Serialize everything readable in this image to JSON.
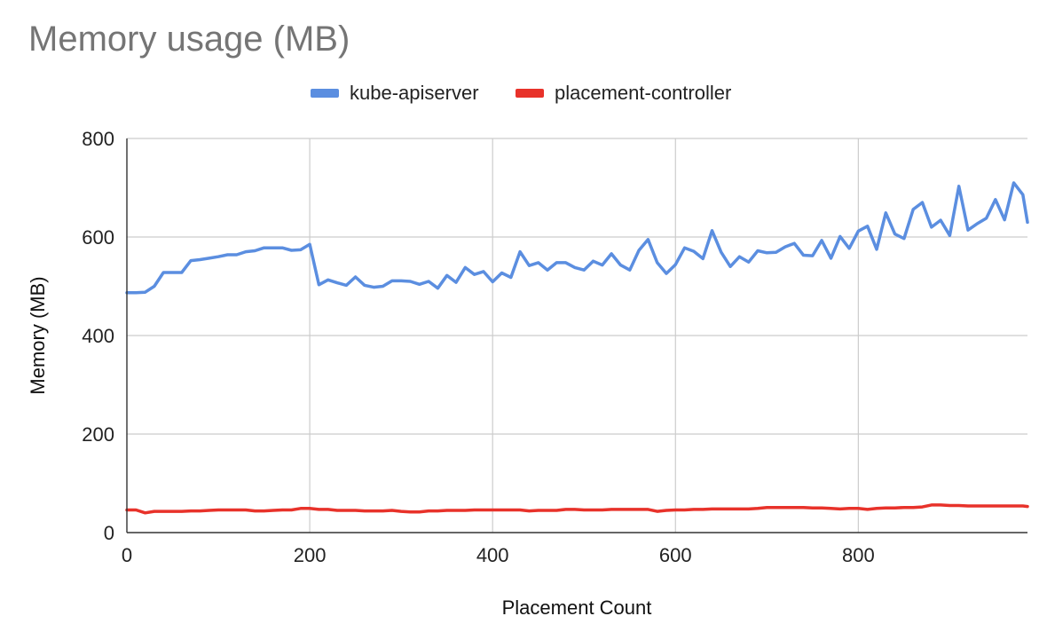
{
  "chart_data": {
    "type": "line",
    "title": "Memory usage (MB)",
    "xlabel": "Placement Count",
    "ylabel": "Memory (MB)",
    "xlim": [
      0,
      985
    ],
    "ylim": [
      0,
      800
    ],
    "xticks": [
      0,
      200,
      400,
      600,
      800
    ],
    "yticks": [
      0,
      200,
      400,
      600,
      800
    ],
    "grid": true,
    "legend_position": "top",
    "series": [
      {
        "name": "kube-apiserver",
        "color": "#5b8ee0",
        "x": [
          0,
          10,
          20,
          30,
          40,
          50,
          60,
          70,
          80,
          90,
          100,
          110,
          120,
          130,
          140,
          150,
          160,
          170,
          180,
          190,
          200,
          210,
          220,
          230,
          240,
          250,
          260,
          270,
          280,
          290,
          300,
          310,
          320,
          330,
          340,
          350,
          360,
          370,
          380,
          390,
          400,
          410,
          420,
          430,
          440,
          450,
          460,
          470,
          480,
          490,
          500,
          510,
          520,
          530,
          540,
          550,
          560,
          570,
          580,
          590,
          600,
          610,
          620,
          630,
          640,
          650,
          660,
          670,
          680,
          690,
          700,
          710,
          720,
          730,
          740,
          750,
          760,
          770,
          780,
          790,
          800,
          810,
          820,
          830,
          840,
          850,
          860,
          870,
          880,
          890,
          900,
          910,
          920,
          930,
          940,
          950,
          960,
          970,
          980,
          985
        ],
        "y": [
          487,
          487,
          488,
          500,
          528,
          528,
          528,
          552,
          554,
          557,
          560,
          564,
          564,
          570,
          572,
          578,
          578,
          578,
          573,
          574,
          585,
          503,
          513,
          507,
          502,
          519,
          502,
          498,
          500,
          511,
          511,
          510,
          504,
          510,
          496,
          522,
          508,
          538,
          524,
          530,
          509,
          527,
          518,
          570,
          542,
          548,
          533,
          548,
          548,
          538,
          533,
          551,
          543,
          566,
          543,
          533,
          573,
          595,
          548,
          526,
          544,
          578,
          571,
          556,
          613,
          569,
          540,
          560,
          549,
          572,
          568,
          569,
          580,
          587,
          563,
          562,
          593,
          557,
          601,
          577,
          612,
          622,
          575,
          649,
          606,
          597,
          656,
          670,
          620,
          634,
          603,
          703,
          614,
          627,
          638,
          676,
          635,
          710,
          686,
          630
        ]
      },
      {
        "name": "placement-controller",
        "color": "#e8322a",
        "x": [
          0,
          10,
          20,
          30,
          40,
          50,
          60,
          70,
          80,
          90,
          100,
          110,
          120,
          130,
          140,
          150,
          160,
          170,
          180,
          190,
          200,
          210,
          220,
          230,
          240,
          250,
          260,
          270,
          280,
          290,
          300,
          310,
          320,
          330,
          340,
          350,
          360,
          370,
          380,
          390,
          400,
          410,
          420,
          430,
          440,
          450,
          460,
          470,
          480,
          490,
          500,
          510,
          520,
          530,
          540,
          550,
          560,
          570,
          580,
          590,
          600,
          610,
          620,
          630,
          640,
          650,
          660,
          670,
          680,
          690,
          700,
          710,
          720,
          730,
          740,
          750,
          760,
          770,
          780,
          790,
          800,
          810,
          820,
          830,
          840,
          850,
          860,
          870,
          880,
          890,
          900,
          910,
          920,
          930,
          940,
          950,
          960,
          970,
          980,
          985
        ],
        "y": [
          46,
          46,
          40,
          43,
          43,
          43,
          43,
          44,
          44,
          45,
          46,
          46,
          46,
          46,
          44,
          44,
          45,
          46,
          46,
          49,
          49,
          47,
          47,
          45,
          45,
          45,
          44,
          44,
          44,
          45,
          43,
          42,
          42,
          44,
          44,
          45,
          45,
          45,
          46,
          46,
          46,
          46,
          46,
          46,
          44,
          45,
          45,
          45,
          47,
          47,
          46,
          46,
          46,
          47,
          47,
          47,
          47,
          47,
          43,
          45,
          46,
          46,
          47,
          47,
          48,
          48,
          48,
          48,
          48,
          49,
          51,
          51,
          51,
          51,
          51,
          50,
          50,
          49,
          48,
          49,
          49,
          47,
          49,
          50,
          50,
          51,
          51,
          52,
          56,
          56,
          55,
          55,
          54,
          54,
          54,
          54,
          54,
          54,
          54,
          53
        ]
      }
    ]
  }
}
